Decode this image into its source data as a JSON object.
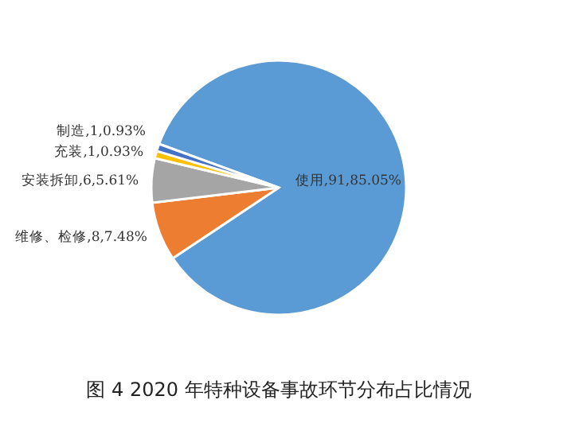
{
  "chart_data": {
    "type": "pie",
    "title": "图 4 2020 年特种设备事故环节分布占比情况",
    "categories": [
      "使用",
      "维修、检修",
      "安装拆卸",
      "充装",
      "制造"
    ],
    "values": [
      85.05,
      7.48,
      5.61,
      0.93,
      0.93
    ],
    "colors": [
      "#5b9bd5",
      "#ed7d31",
      "#a5a5a5",
      "#ffc000",
      "#4472c4"
    ],
    "value_labels": [
      "91,85.05%",
      "8,7.48%",
      "6,5.61%",
      "1,0.93%",
      "1,0.93%"
    ]
  }
}
